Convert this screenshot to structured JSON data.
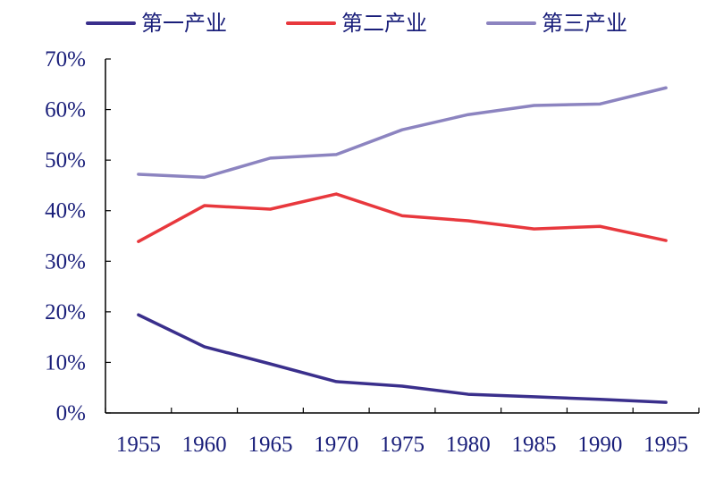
{
  "chart_data": {
    "type": "line",
    "categories": [
      "1955",
      "1960",
      "1965",
      "1970",
      "1975",
      "1980",
      "1985",
      "1990",
      "1995"
    ],
    "series": [
      {
        "name": "第一产业",
        "color": "#3a2f8c",
        "values": [
          19.4,
          13.1,
          9.7,
          6.2,
          5.3,
          3.7,
          3.2,
          2.7,
          2.1
        ]
      },
      {
        "name": "第二产业",
        "color": "#e8383d",
        "values": [
          33.9,
          41.0,
          40.3,
          43.3,
          39.0,
          38.0,
          36.4,
          36.9,
          34.1
        ]
      },
      {
        "name": "第三产业",
        "color": "#8c84c0",
        "values": [
          47.2,
          46.6,
          50.4,
          51.1,
          56.0,
          59.0,
          60.8,
          61.1,
          64.3
        ]
      }
    ],
    "yticks": [
      "0%",
      "10%",
      "20%",
      "30%",
      "40%",
      "50%",
      "60%",
      "70%"
    ],
    "ylim": [
      0,
      70
    ],
    "grid": false,
    "legend": "top"
  }
}
